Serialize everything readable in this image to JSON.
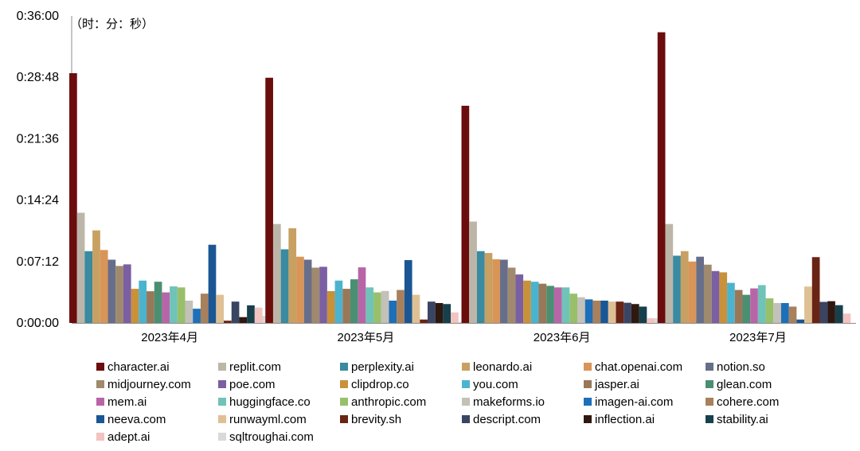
{
  "chart_data": {
    "type": "bar",
    "title": "",
    "unit_label": "（时：分：秒）",
    "categories": [
      "2023年4月",
      "2023年5月",
      "2023年6月",
      "2023年7月"
    ],
    "y_ticks": [
      "0:00:00",
      "0:07:12",
      "0:14:24",
      "0:21:36",
      "0:28:48",
      "0:36:00"
    ],
    "ylim_seconds": [
      0,
      2160
    ],
    "ylabel": "",
    "xlabel": "",
    "legend_position": "bottom",
    "grid": false,
    "series": [
      {
        "name": "character.ai",
        "color": "#6b0d0d",
        "values": [
          1757,
          1725,
          1528,
          2045
        ]
      },
      {
        "name": "replit.com",
        "color": "#bcb6a9",
        "values": [
          775,
          696,
          713,
          696
        ]
      },
      {
        "name": "perplexity.ai",
        "color": "#3a8aa0",
        "values": [
          505,
          518,
          505,
          473
        ]
      },
      {
        "name": "leonardo.ai",
        "color": "#c8a062",
        "values": [
          651,
          666,
          492,
          505
        ]
      },
      {
        "name": "chat.openai.com",
        "color": "#d99558",
        "values": [
          513,
          466,
          448,
          432
        ]
      },
      {
        "name": "notion.so",
        "color": "#676e89",
        "values": [
          445,
          445,
          445,
          466
        ]
      },
      {
        "name": "midjourney.com",
        "color": "#a08a6d",
        "values": [
          401,
          389,
          389,
          410
        ]
      },
      {
        "name": "poe.com",
        "color": "#7a5fa3",
        "values": [
          412,
          395,
          341,
          365
        ]
      },
      {
        "name": "clipdrop.co",
        "color": "#c8913a",
        "values": [
          240,
          224,
          298,
          356
        ]
      },
      {
        "name": "you.com",
        "color": "#4cb3cf",
        "values": [
          298,
          298,
          290,
          282
        ]
      },
      {
        "name": "jasper.ai",
        "color": "#987858",
        "values": [
          223,
          240,
          276,
          232
        ]
      },
      {
        "name": "glean.com",
        "color": "#4a8f72",
        "values": [
          290,
          307,
          261,
          198
        ]
      },
      {
        "name": "mem.ai",
        "color": "#b865a8",
        "values": [
          215,
          391,
          250,
          243
        ]
      },
      {
        "name": "huggingface.co",
        "color": "#6fc3b8",
        "values": [
          257,
          250,
          250,
          266
        ]
      },
      {
        "name": "anthropic.com",
        "color": "#98c06b",
        "values": [
          250,
          215,
          206,
          173
        ]
      },
      {
        "name": "makeforms.io",
        "color": "#c3c1b8",
        "values": [
          157,
          225,
          181,
          140
        ]
      },
      {
        "name": "imagen-ai.com",
        "color": "#1d6fb8",
        "values": [
          100,
          157,
          166,
          140
        ]
      },
      {
        "name": "cohere.com",
        "color": "#a8805c",
        "values": [
          206,
          232,
          157,
          115
        ]
      },
      {
        "name": "neeva.com",
        "color": "#1a5694",
        "values": [
          550,
          442,
          157,
          24
        ]
      },
      {
        "name": "runwayml.com",
        "color": "#dfc095",
        "values": [
          198,
          198,
          150,
          256
        ]
      },
      {
        "name": "brevity.sh",
        "color": "#6a2414",
        "values": [
          16,
          24,
          150,
          463
        ]
      },
      {
        "name": "descript.com",
        "color": "#3a4463",
        "values": [
          150,
          150,
          142,
          148
        ]
      },
      {
        "name": "inflection.ai",
        "color": "#2e1810",
        "values": [
          41,
          140,
          133,
          153
        ]
      },
      {
        "name": "stability.ai",
        "color": "#17404c",
        "values": [
          124,
          133,
          115,
          125
        ]
      },
      {
        "name": "adept.ai",
        "color": "#f3c3c0",
        "values": [
          108,
          74,
          33,
          66
        ]
      },
      {
        "name": "sqltroughai.com",
        "color": "#d9d9d9",
        "values": [
          50,
          8,
          33,
          0
        ]
      }
    ]
  }
}
